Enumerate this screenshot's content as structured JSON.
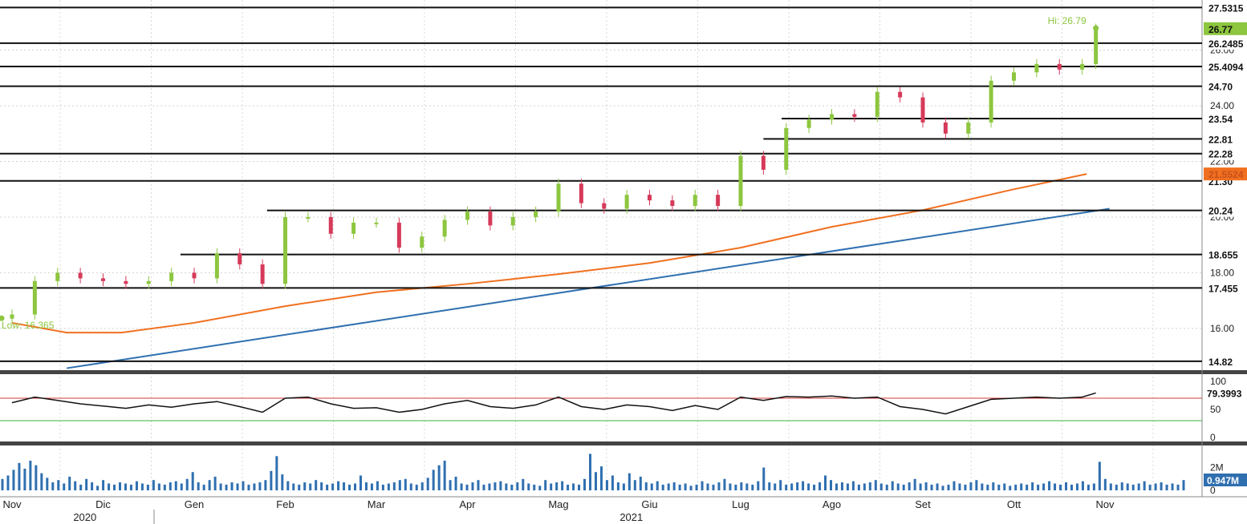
{
  "chart_data": {
    "type": "candlestick",
    "price_panel": {
      "y_range": [
        14.5,
        27.8
      ],
      "y_ticks": [
        16.0,
        18.0,
        20.0,
        22.0,
        24.0,
        26.0
      ],
      "y_tick_labels": [
        "16.00",
        "18.00",
        "20.00",
        "22.00",
        "24.00",
        "26.00"
      ],
      "last_price": "26.77",
      "hi_label": "Hi: 26.79",
      "lo_label": "Low: 16.365",
      "hi_value": 26.79,
      "lo_value": 16.365,
      "level_lines": [
        {
          "value": 27.5315,
          "label": "27.5315"
        },
        {
          "value": 26.2485,
          "label": "26.2485"
        },
        {
          "value": 25.4094,
          "label": "25.4094"
        },
        {
          "value": 24.7,
          "label": "24.70"
        },
        {
          "value": 23.54,
          "label": "23.54",
          "from_month": 8.45
        },
        {
          "value": 22.81,
          "label": "22.81",
          "from_month": 8.25
        },
        {
          "value": 22.28,
          "label": "22.28"
        },
        {
          "value": 21.3,
          "label": "21.30"
        },
        {
          "value": 20.24,
          "label": "20.24",
          "from_month": 2.8
        },
        {
          "value": 18.655,
          "label": "18.655",
          "from_month": 1.85
        },
        {
          "value": 17.455,
          "label": "17.455"
        },
        {
          "value": 14.82,
          "label": "14.82"
        }
      ],
      "moving_average": {
        "color": "#f07020",
        "label": "21.5524",
        "x_month": [
          0,
          0.6,
          1.2,
          2,
          3,
          4,
          5,
          6,
          7,
          8,
          9,
          10,
          11,
          11.8
        ],
        "y": [
          16.2,
          15.85,
          15.85,
          16.2,
          16.8,
          17.3,
          17.6,
          17.95,
          18.35,
          18.9,
          19.65,
          20.25,
          21.0,
          21.55
        ]
      },
      "trend_line": {
        "color": "#2f6fb0",
        "x_month": [
          0.6,
          12.05
        ],
        "y": [
          14.57,
          20.3
        ]
      },
      "candles": {
        "up_color": "#8dc63f",
        "down_color": "#d63a5a",
        "x_month": [
          0,
          0.25,
          0.5,
          0.75,
          1,
          1.25,
          1.5,
          1.75,
          2,
          2.25,
          2.5,
          2.75,
          3,
          3.25,
          3.5,
          3.75,
          4,
          4.25,
          4.5,
          4.75,
          5,
          5.25,
          5.5,
          5.75,
          6,
          6.25,
          6.5,
          6.75,
          7,
          7.25,
          7.5,
          7.75,
          8,
          8.25,
          8.5,
          8.75,
          9,
          9.25,
          9.5,
          9.75,
          10,
          10.25,
          10.5,
          10.75,
          11,
          11.25,
          11.5,
          11.75,
          11.9
        ],
        "close": [
          16.5,
          17.7,
          18.0,
          17.8,
          17.7,
          17.6,
          17.7,
          18.0,
          17.8,
          18.7,
          18.3,
          17.6,
          20.0,
          20.0,
          19.4,
          19.8,
          19.8,
          18.9,
          19.3,
          19.9,
          20.2,
          19.7,
          20.0,
          20.2,
          21.2,
          20.5,
          20.3,
          20.8,
          20.6,
          20.4,
          20.8,
          20.4,
          22.2,
          21.7,
          23.2,
          23.5,
          23.7,
          23.6,
          24.5,
          24.3,
          23.4,
          23.0,
          23.4,
          24.9,
          25.2,
          25.5,
          25.3,
          25.5,
          26.77
        ]
      }
    },
    "rsi_panel": {
      "y_range": [
        0,
        100
      ],
      "y_ticks": [
        0,
        50,
        100
      ],
      "y_tick_labels": [
        "0",
        "50",
        "100"
      ],
      "overbought": 70,
      "oversold": 30,
      "last_value": "79.3993",
      "x_month": [
        0,
        0.25,
        0.5,
        0.75,
        1,
        1.25,
        1.5,
        1.75,
        2,
        2.25,
        2.5,
        2.75,
        3,
        3.25,
        3.5,
        3.75,
        4,
        4.25,
        4.5,
        4.75,
        5,
        5.25,
        5.5,
        5.75,
        6,
        6.25,
        6.5,
        6.75,
        7,
        7.25,
        7.5,
        7.75,
        8,
        8.25,
        8.5,
        8.75,
        9,
        9.25,
        9.5,
        9.75,
        10,
        10.25,
        10.5,
        10.75,
        11,
        11.25,
        11.5,
        11.75,
        11.9
      ],
      "values": [
        62,
        72,
        66,
        60,
        56,
        52,
        58,
        54,
        60,
        64,
        55,
        45,
        70,
        72,
        60,
        52,
        53,
        45,
        50,
        60,
        66,
        55,
        52,
        58,
        72,
        55,
        50,
        58,
        55,
        48,
        57,
        50,
        72,
        66,
        73,
        72,
        74,
        70,
        72,
        55,
        50,
        42,
        55,
        68,
        70,
        72,
        70,
        72,
        79.4
      ]
    },
    "volume_panel": {
      "y_range": [
        0,
        3.3
      ],
      "y_ticks": [
        0,
        2
      ],
      "y_tick_labels": [
        "0",
        "2M"
      ],
      "last_value": "0.947M",
      "bar_color": "#2f6fb0",
      "values": [
        1.0,
        1.3,
        1.8,
        2.4,
        1.9,
        2.6,
        2.2,
        1.5,
        1.1,
        0.7,
        0.9,
        0.6,
        1.2,
        0.8,
        0.5,
        1.0,
        0.7,
        0.4,
        0.9,
        0.6,
        0.5,
        0.7,
        0.6,
        0.5,
        0.8,
        0.6,
        0.5,
        0.9,
        0.6,
        0.5,
        0.7,
        0.8,
        0.6,
        1.0,
        1.6,
        0.7,
        0.5,
        0.9,
        1.2,
        0.6,
        0.5,
        0.7,
        0.6,
        0.8,
        0.5,
        0.6,
        0.7,
        0.9,
        1.7,
        3.0,
        1.4,
        0.8,
        0.6,
        0.5,
        0.7,
        0.6,
        0.9,
        0.7,
        0.5,
        0.6,
        0.8,
        0.7,
        0.5,
        0.6,
        1.3,
        0.7,
        0.6,
        0.8,
        0.5,
        0.6,
        0.7,
        0.9,
        1.0,
        0.6,
        0.5,
        0.7,
        1.1,
        1.8,
        2.2,
        2.6,
        0.9,
        1.2,
        0.6,
        0.5,
        0.7,
        0.9,
        0.5,
        0.6,
        0.7,
        0.8,
        0.6,
        0.5,
        0.7,
        1.0,
        0.6,
        0.5,
        0.4,
        0.9,
        0.6,
        0.7,
        0.8,
        0.5,
        0.6,
        0.5,
        1.0,
        3.2,
        1.6,
        2.1,
        0.9,
        1.3,
        0.7,
        0.6,
        1.5,
        0.9,
        1.2,
        0.7,
        0.6,
        0.8,
        0.5,
        0.6,
        0.7,
        0.5,
        0.6,
        0.4,
        0.5,
        0.8,
        0.6,
        0.5,
        0.7,
        1.0,
        0.6,
        0.5,
        0.7,
        0.6,
        0.5,
        0.8,
        2.0,
        0.7,
        0.6,
        0.9,
        0.5,
        0.6,
        0.7,
        0.8,
        0.6,
        0.5,
        0.7,
        1.3,
        0.9,
        0.6,
        0.7,
        0.6,
        0.8,
        0.5,
        0.6,
        0.7,
        0.9,
        0.6,
        0.5,
        0.8,
        0.6,
        0.5,
        0.7,
        1.0,
        0.6,
        0.7,
        0.5,
        0.6,
        0.4,
        0.5,
        0.8,
        0.6,
        0.5,
        0.7,
        0.9,
        0.6,
        0.5,
        0.7,
        0.5,
        0.6,
        0.4,
        0.5,
        0.6,
        0.5,
        0.7,
        0.5,
        0.6,
        0.8,
        0.6,
        0.5,
        0.7,
        0.5,
        0.6,
        0.8,
        0.5,
        0.6,
        2.5,
        1.0,
        0.6,
        0.5,
        0.7,
        0.6,
        0.5,
        0.6,
        0.8,
        0.5,
        0.6,
        0.7,
        0.5,
        0.6,
        0.5,
        0.9
      ]
    },
    "x_axis": {
      "months": [
        "Nov",
        "Dic",
        "Gen",
        "Feb",
        "Mar",
        "Apr",
        "Mag",
        "Giu",
        "Lug",
        "Ago",
        "Set",
        "Ott",
        "Nov"
      ],
      "years": [
        {
          "label": "2020",
          "at_month": 0.8
        },
        {
          "label": "2021",
          "at_month": 6.8
        }
      ]
    }
  }
}
